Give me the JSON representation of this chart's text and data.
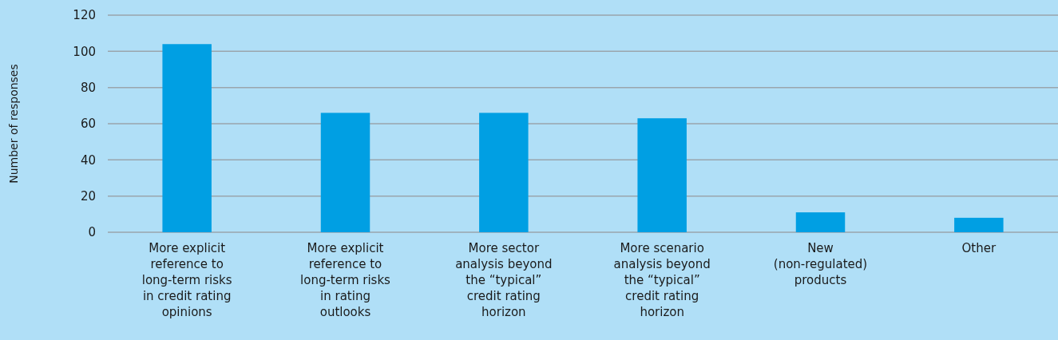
{
  "chart_data": {
    "type": "bar",
    "ylabel": "Number of responses",
    "categories": [
      "More explicit reference to long-term risks in credit rating opinions",
      "More explicit reference to long-term risks in rating outlooks",
      "More sector analysis beyond the “typical” credit rating horizon",
      "More scenario analysis beyond the “typical” credit rating horizon",
      "New (non-regulated) products",
      "Other"
    ],
    "values": [
      104,
      66,
      66,
      63,
      11,
      8
    ],
    "color": "#009fe3",
    "ylim": [
      0,
      120
    ],
    "yticks": [
      0,
      20,
      40,
      60,
      80,
      100,
      120
    ],
    "grid": "y"
  }
}
